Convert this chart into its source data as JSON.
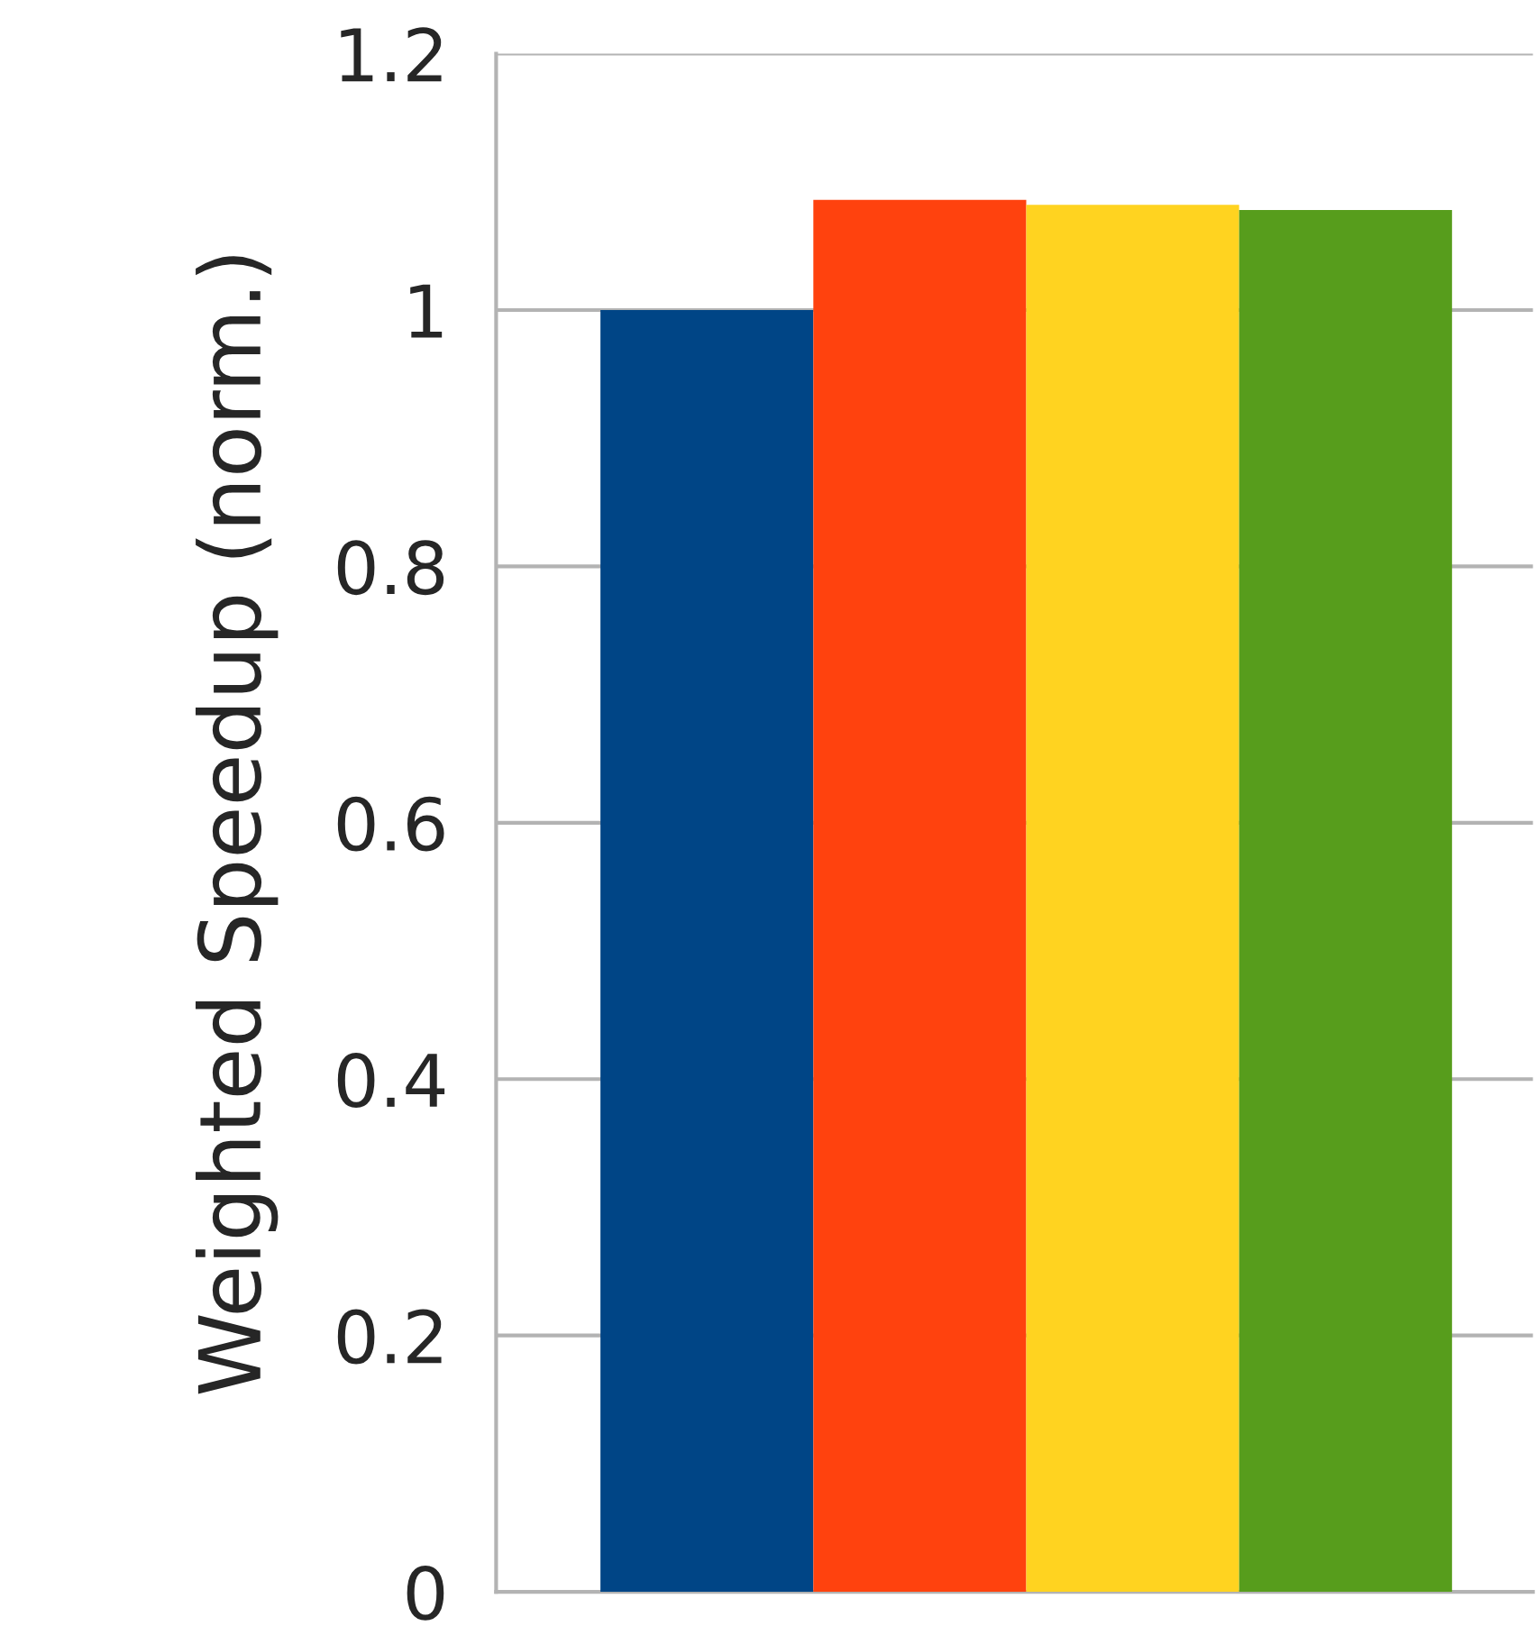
{
  "chart_data": {
    "type": "bar",
    "ylabel": "Weighted Speedup (norm.)",
    "categories": [
      null,
      null,
      null,
      null
    ],
    "values": [
      1.0,
      1.086,
      1.082,
      1.078
    ],
    "colors": [
      "#004586",
      "#ff420e",
      "#ffd320",
      "#579d1c"
    ],
    "ylim": [
      0,
      1.2
    ],
    "yticks": [
      0,
      0.2,
      0.4,
      0.6,
      0.8,
      1,
      1.2
    ],
    "grid": "y",
    "legend": false
  }
}
